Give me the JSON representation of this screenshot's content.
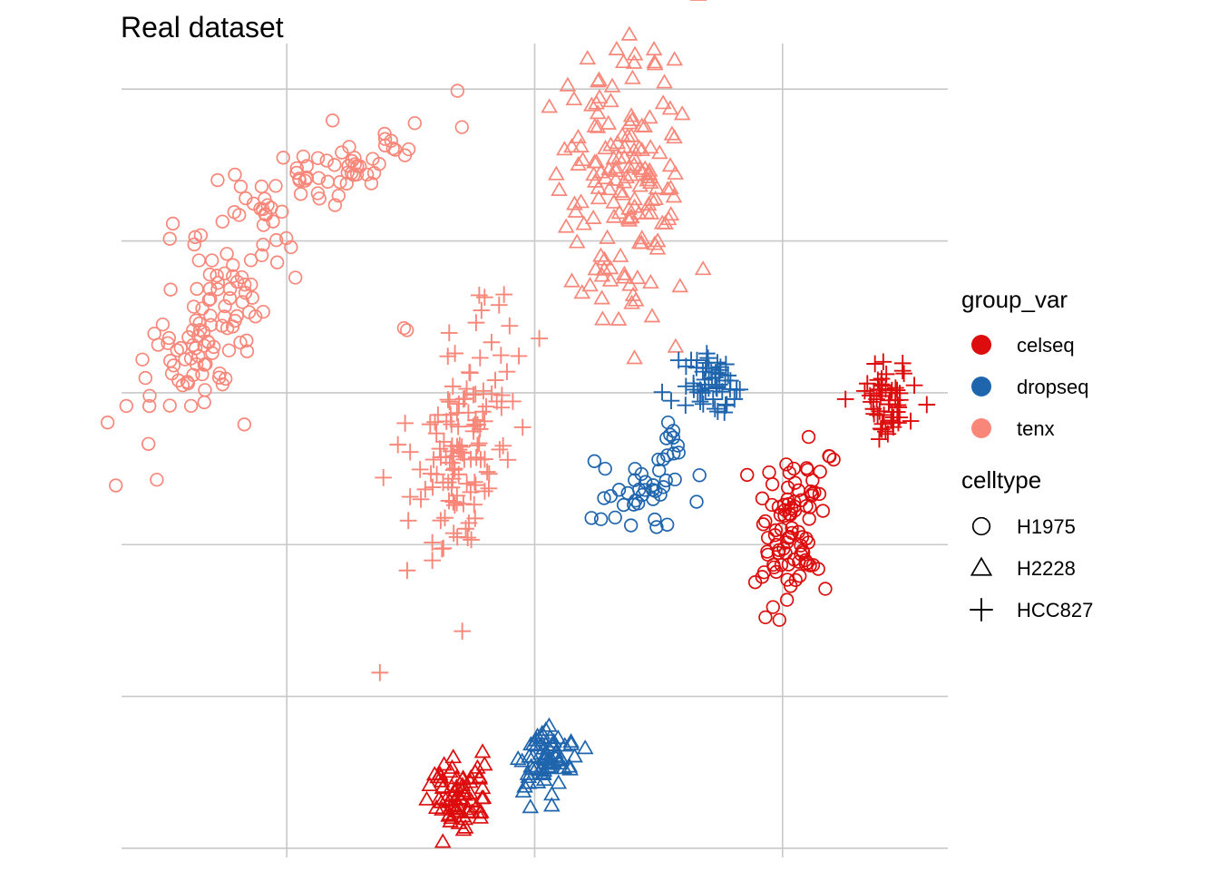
{
  "chart_data": {
    "type": "scatter",
    "title": "Real dataset",
    "xlabel": "",
    "ylabel": "",
    "xlim": [
      -5,
      45
    ],
    "ylim": [
      -0.3,
      26.5
    ],
    "grid": true,
    "legend_position": "right",
    "legend": {
      "color_title": "group_var",
      "color_entries": [
        {
          "label": "celseq",
          "color": "#DD0D0D"
        },
        {
          "label": "dropseq",
          "color": "#1F65AD"
        },
        {
          "label": "tenx",
          "color": "#F8877A"
        }
      ],
      "shape_title": "celltype",
      "shape_entries": [
        {
          "label": "H1975",
          "shape": "circle"
        },
        {
          "label": "H2228",
          "shape": "triangle"
        },
        {
          "label": "HCC827",
          "shape": "plus"
        }
      ]
    },
    "clusters": [
      {
        "group": "tenx",
        "celltype": "H1975",
        "cx": 7,
        "cy": 22.2,
        "sx": 3.6,
        "sy": 0.9,
        "rho": 0.75,
        "n": 70,
        "seed": 11
      },
      {
        "group": "tenx",
        "celltype": "H1975",
        "cx": 0.8,
        "cy": 17.3,
        "sx": 2.5,
        "sy": 2.0,
        "rho": 0.72,
        "n": 110,
        "seed": 12
      },
      {
        "group": "tenx",
        "celltype": "H2228",
        "cx": 25.5,
        "cy": 22.0,
        "sx": 2.0,
        "sy": 2.3,
        "rho": 0.0,
        "n": 160,
        "seed": 13
      },
      {
        "group": "tenx",
        "celltype": "HCC827",
        "cx": 15.8,
        "cy": 13.5,
        "sx": 1.7,
        "sy": 2.3,
        "rho": 0.55,
        "n": 130,
        "seed": 14
      },
      {
        "group": "tenx",
        "celltype": "H1975",
        "cx": 12.2,
        "cy": 17.1,
        "sx": 0.1,
        "sy": 0.08,
        "rho": 0.0,
        "n": 2,
        "seed": 15
      },
      {
        "group": "dropseq",
        "celltype": "HCC827",
        "cx": 30.8,
        "cy": 15.2,
        "sx": 1.0,
        "sy": 0.5,
        "rho": 0.0,
        "n": 55,
        "seed": 21
      },
      {
        "group": "dropseq",
        "celltype": "H1975",
        "cx": 26.4,
        "cy": 11.7,
        "sx": 1.6,
        "sy": 0.7,
        "rho": 0.3,
        "n": 40,
        "seed": 22
      },
      {
        "group": "dropseq",
        "celltype": "H1975",
        "cx": 28.3,
        "cy": 13.6,
        "sx": 0.25,
        "sy": 0.45,
        "rho": 0.5,
        "n": 6,
        "seed": 23
      },
      {
        "group": "dropseq",
        "celltype": "H2228",
        "cx": 20.6,
        "cy": 2.8,
        "sx": 0.8,
        "sy": 0.6,
        "rho": 0.0,
        "n": 70,
        "seed": 24
      },
      {
        "group": "celseq",
        "celltype": "H2228",
        "cx": 15.4,
        "cy": 1.7,
        "sx": 0.9,
        "sy": 0.6,
        "rho": 0.0,
        "n": 75,
        "seed": 31
      },
      {
        "group": "celseq",
        "celltype": "HCC827",
        "cx": 41.3,
        "cy": 14.8,
        "sx": 0.9,
        "sy": 0.6,
        "rho": 0.0,
        "n": 55,
        "seed": 32
      },
      {
        "group": "celseq",
        "celltype": "H1975",
        "cx": 35.5,
        "cy": 10.3,
        "sx": 0.9,
        "sy": 1.2,
        "rho": 0.1,
        "n": 90,
        "seed": 33
      },
      {
        "group": "celseq",
        "celltype": "H1975",
        "cx": 37.9,
        "cy": 12.8,
        "sx": 0.08,
        "sy": 0.06,
        "rho": 0.0,
        "n": 3,
        "seed": 34
      }
    ]
  }
}
